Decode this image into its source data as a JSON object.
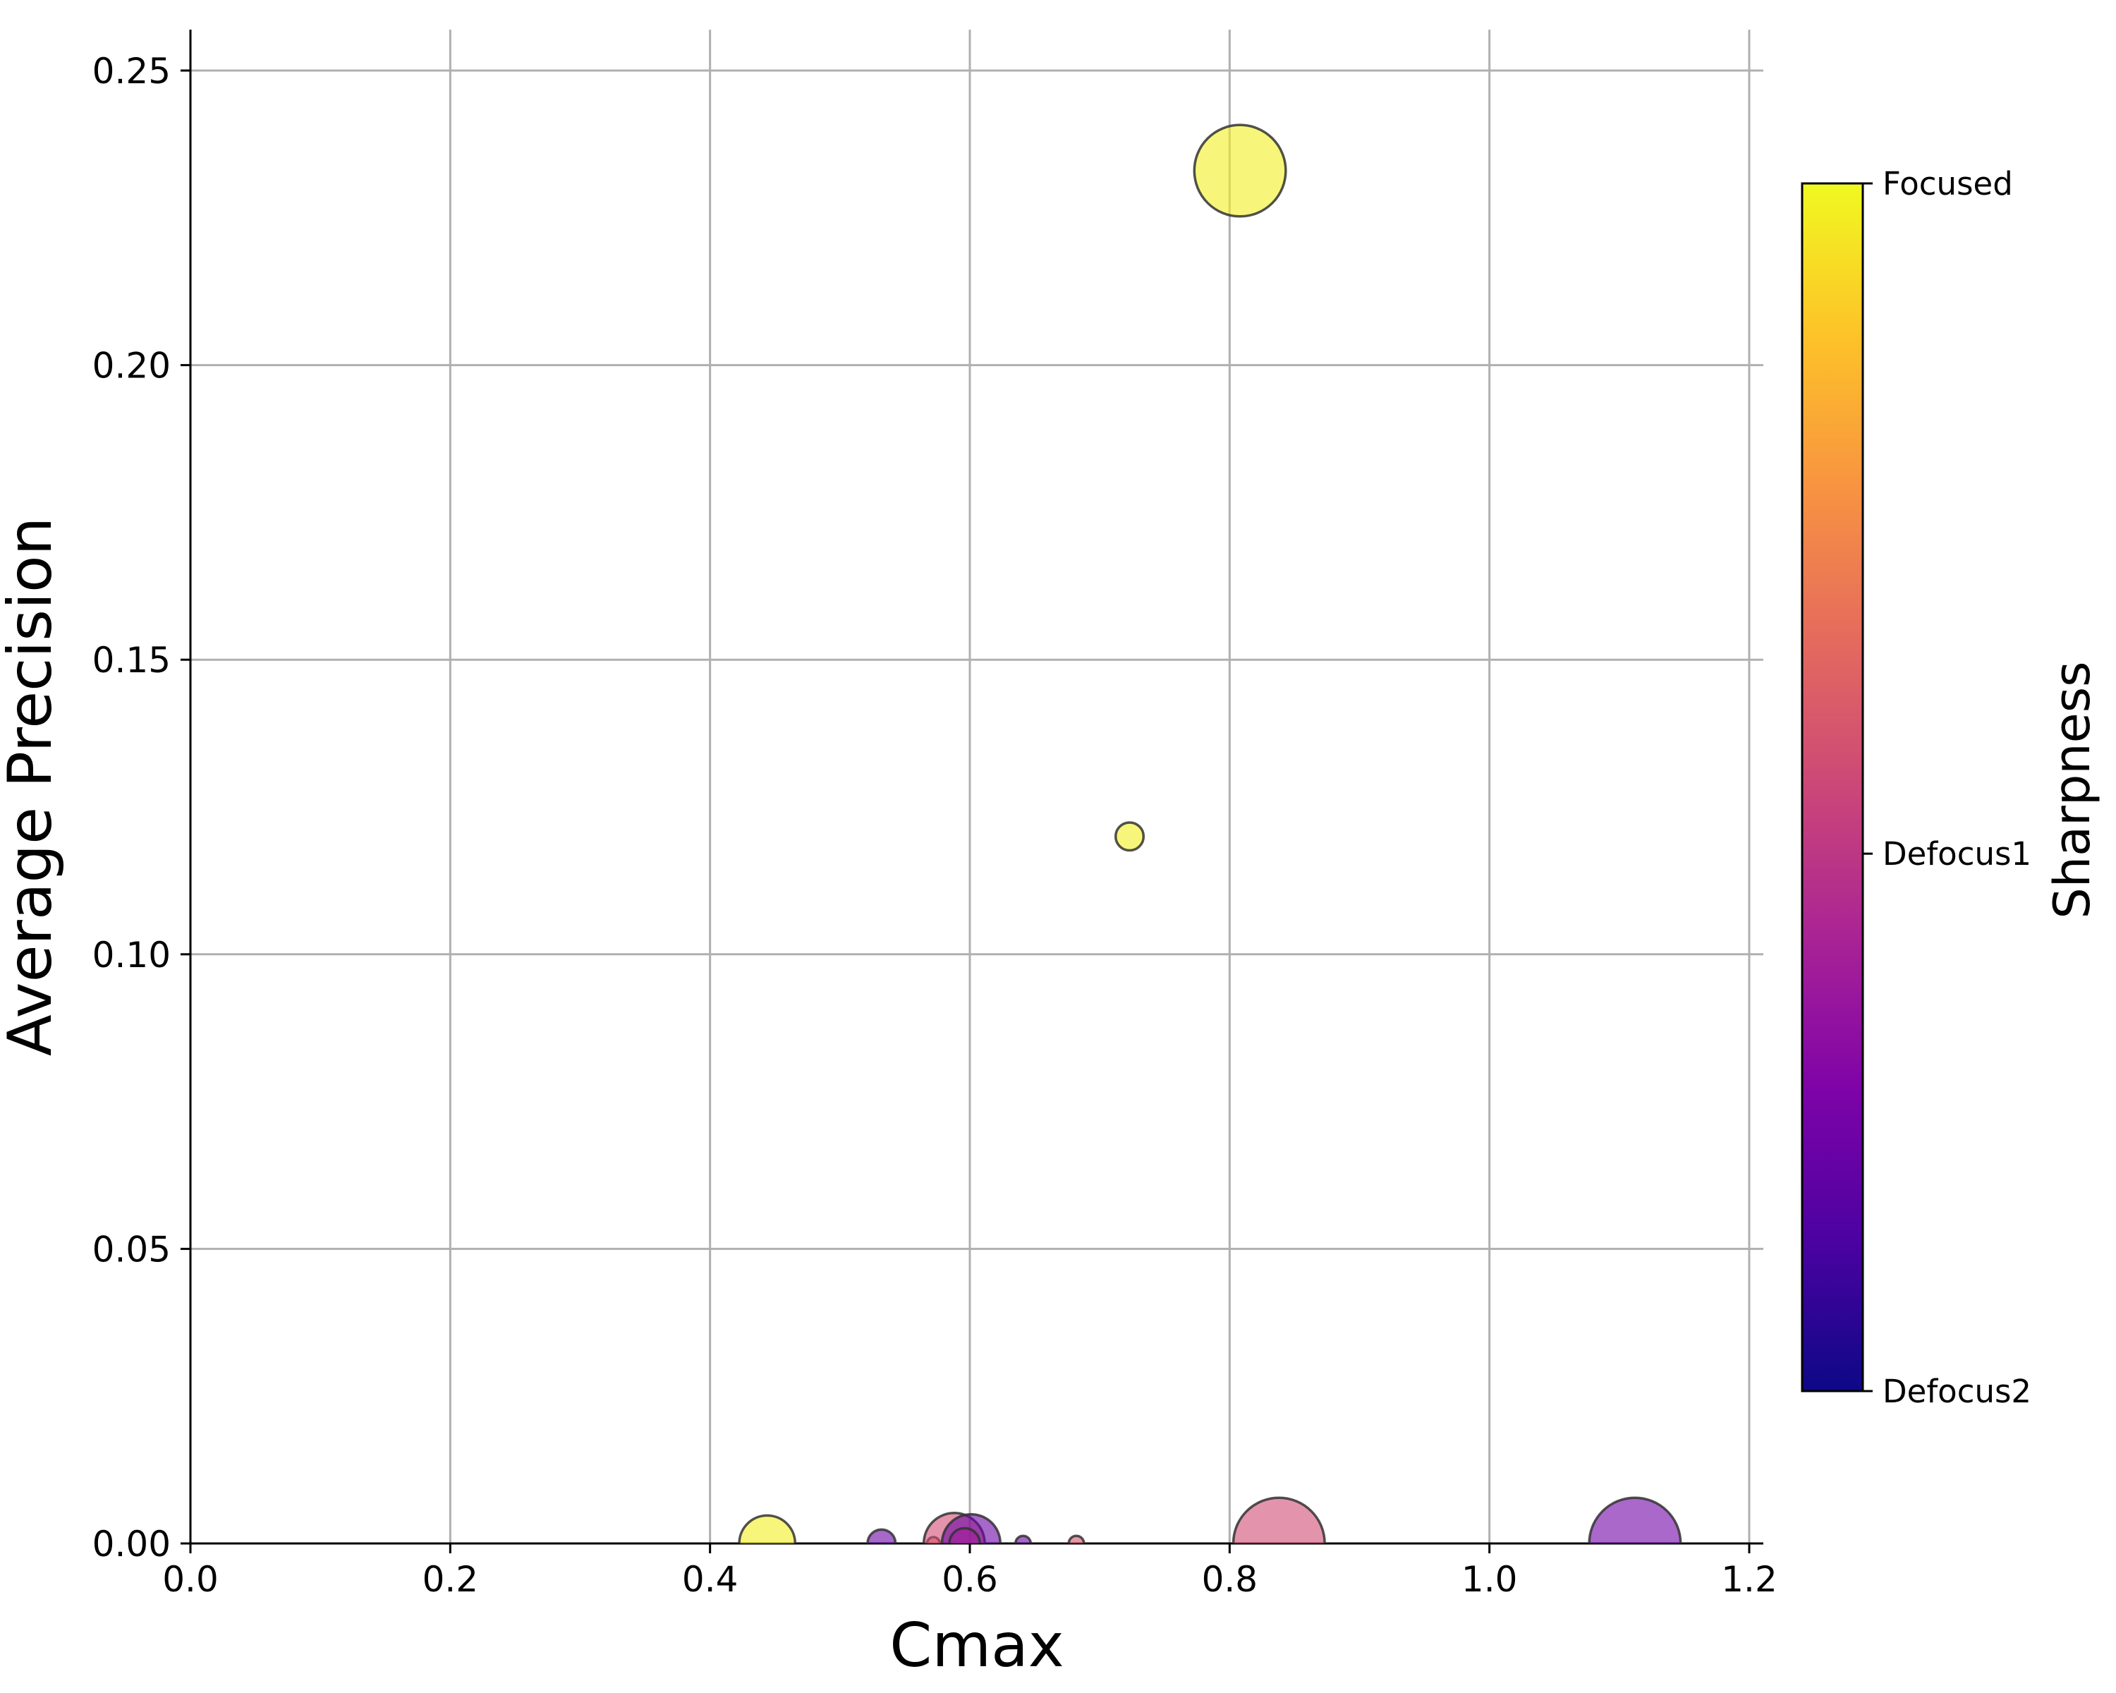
{
  "chart_data": {
    "type": "scatter",
    "title": "",
    "xlabel": "Cmax",
    "ylabel": "Average Precision",
    "xlim": [
      0.0,
      1.2
    ],
    "ylim": [
      0.0,
      0.257
    ],
    "xticks": [
      0.0,
      0.2,
      0.4,
      0.6,
      0.8,
      1.0,
      1.2
    ],
    "yticks": [
      0.0,
      0.05,
      0.1,
      0.15,
      0.2,
      0.25
    ],
    "xtick_labels": [
      "0.0",
      "0.2",
      "0.4",
      "0.6",
      "0.8",
      "1.0",
      "1.2"
    ],
    "ytick_labels": [
      "0.00",
      "0.05",
      "0.10",
      "0.15",
      "0.20",
      "0.25"
    ],
    "grid": true,
    "colormap": "plasma",
    "colorbar": {
      "title": "Sharpness",
      "tick_labels": [
        "Focused",
        "Defocus1",
        "Defocus2"
      ],
      "tick_values": [
        1.0,
        0.445,
        0.0
      ]
    },
    "points": [
      {
        "x": 0.808,
        "y": 0.233,
        "size": 36,
        "color": 0.98
      },
      {
        "x": 0.723,
        "y": 0.12,
        "size": 11,
        "color": 0.98
      },
      {
        "x": 0.444,
        "y": 0.0,
        "size": 22,
        "color": 0.98
      },
      {
        "x": 0.532,
        "y": 0.0,
        "size": 11,
        "color": 0.2
      },
      {
        "x": 0.572,
        "y": 0.0,
        "size": 5,
        "color": 0.62
      },
      {
        "x": 0.588,
        "y": 0.0,
        "size": 24,
        "color": 0.52
      },
      {
        "x": 0.601,
        "y": 0.0,
        "size": 23,
        "color": 0.2
      },
      {
        "x": 0.596,
        "y": 0.0,
        "size": 12,
        "color": 0.35
      },
      {
        "x": 0.641,
        "y": 0.0,
        "size": 6,
        "color": 0.2
      },
      {
        "x": 0.682,
        "y": 0.0,
        "size": 6,
        "color": 0.55
      },
      {
        "x": 0.838,
        "y": 0.0,
        "size": 36,
        "color": 0.52
      },
      {
        "x": 1.112,
        "y": 0.0,
        "size": 36,
        "color": 0.22
      }
    ]
  }
}
